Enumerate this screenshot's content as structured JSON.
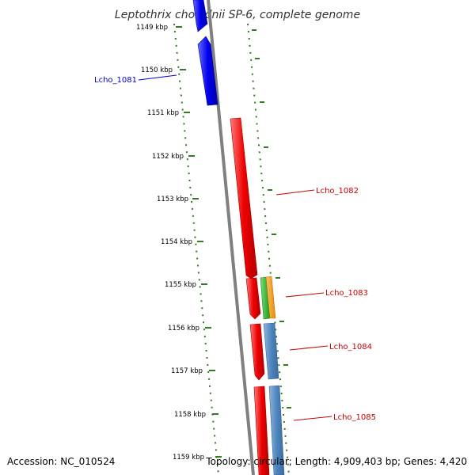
{
  "title": "Leptothrix cholodnii SP-6, complete genome",
  "footer": {
    "accession": "Accession: NC_010524",
    "topology": "Topology: circular; Length: 4,909,403 bp; Genes: 4,420"
  },
  "scale": {
    "ticks": [
      "1149 kbp",
      "1150 kbp",
      "1151 kbp",
      "1152 kbp",
      "1153 kbp",
      "1154 kbp",
      "1155 kbp",
      "1156 kbp",
      "1157 kbp",
      "1158 kbp",
      "1159 kbp"
    ]
  },
  "genes": [
    {
      "name": "Lcho_1081",
      "color": "#0000cc"
    },
    {
      "name": "Lcho_1082",
      "color": "#cc0000"
    },
    {
      "name": "Lcho_1083",
      "color": "#cc0000"
    },
    {
      "name": "Lcho_1084",
      "color": "#cc0000"
    },
    {
      "name": "Lcho_1085",
      "color": "#cc0000"
    }
  ],
  "colors": {
    "backbone": "#808080",
    "dots": "#2e7d1f",
    "blue": "#0000ee",
    "red": "#ee0000",
    "green": "#22bb22",
    "orange": "#ff9900",
    "steel": "#4f86bf"
  }
}
